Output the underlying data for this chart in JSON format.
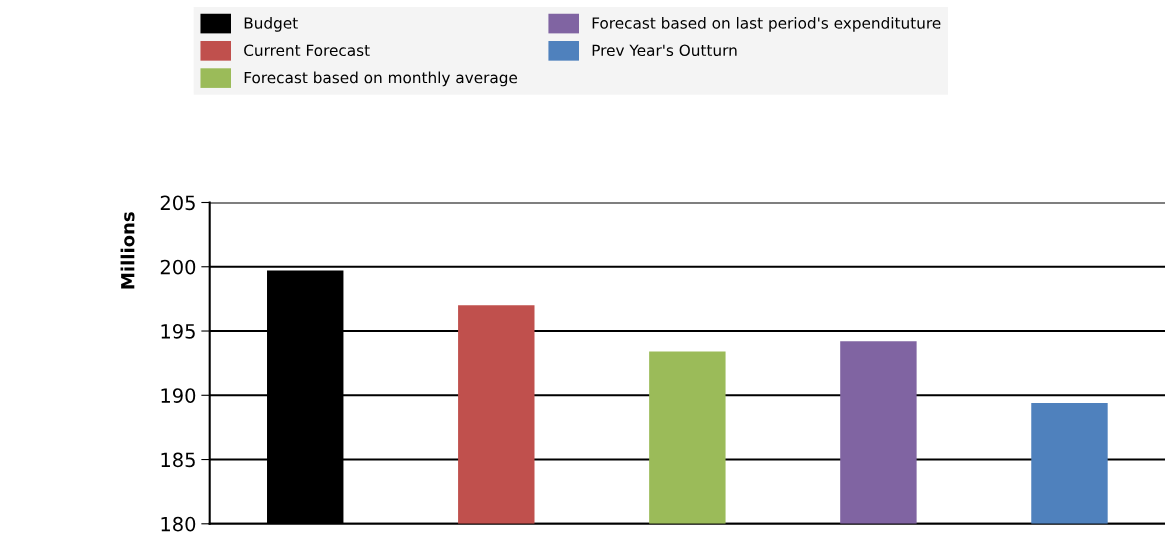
{
  "chart_data": {
    "type": "bar",
    "ylabel": "Millions",
    "categories": [
      null,
      null,
      null,
      null,
      null
    ],
    "series": [
      {
        "name": "Budget",
        "color": "#000000",
        "values": [
          199.7,
          null,
          null,
          null,
          null
        ]
      },
      {
        "name": "Current Forecast",
        "color": "#c0504d",
        "values": [
          null,
          197.0,
          null,
          null,
          null
        ]
      },
      {
        "name": "Forecast based on monthly average",
        "color": "#9bbb59",
        "values": [
          null,
          null,
          193.4,
          null,
          null
        ]
      },
      {
        "name": "Forecast based on last period's expendituture",
        "color": "#8064a2",
        "values": [
          null,
          null,
          null,
          194.2,
          null
        ]
      },
      {
        "name": "Prev Year's Outturn",
        "color": "#4f81bd",
        "values": [
          null,
          null,
          null,
          null,
          189.4
        ]
      }
    ],
    "ylim": [
      180,
      205
    ],
    "yticks": [
      180,
      185,
      190,
      195,
      200,
      205
    ],
    "grid": "y",
    "legend": "top"
  }
}
